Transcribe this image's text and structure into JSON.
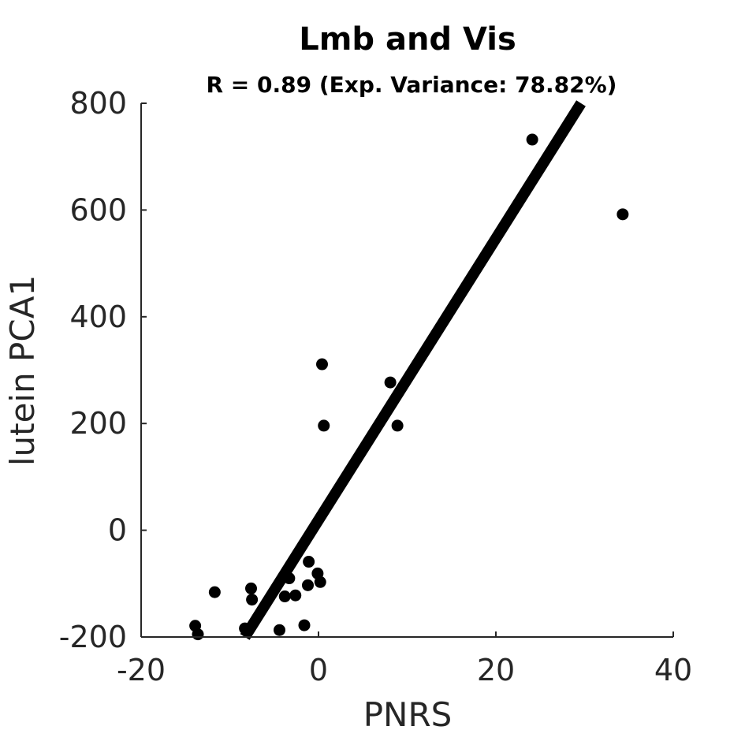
{
  "chart_data": {
    "type": "scatter",
    "title": "Lmb and Vis",
    "subtitle": "R = 0.89 (Exp. Variance: 78.82%)",
    "xlabel": "PNRS",
    "ylabel": "lutein PCA1",
    "xlim": [
      -20,
      40
    ],
    "ylim": [
      -200,
      800
    ],
    "xticks": [
      -20,
      0,
      20,
      40
    ],
    "yticks": [
      -200,
      0,
      200,
      400,
      600,
      800
    ],
    "grid": false,
    "point_color": "#000000",
    "line_color": "#000000",
    "points": [
      {
        "x": 24.1,
        "y": 732
      },
      {
        "x": 34.3,
        "y": 592
      },
      {
        "x": 0.4,
        "y": 311
      },
      {
        "x": 8.1,
        "y": 277
      },
      {
        "x": 0.6,
        "y": 196
      },
      {
        "x": 8.9,
        "y": 196
      },
      {
        "x": -1.1,
        "y": -59
      },
      {
        "x": -0.1,
        "y": -81
      },
      {
        "x": 0.2,
        "y": -97
      },
      {
        "x": -3.3,
        "y": -90
      },
      {
        "x": -1.2,
        "y": -103
      },
      {
        "x": -11.7,
        "y": -116
      },
      {
        "x": -7.6,
        "y": -109
      },
      {
        "x": -7.5,
        "y": -130
      },
      {
        "x": -3.8,
        "y": -124
      },
      {
        "x": -2.6,
        "y": -122
      },
      {
        "x": -13.9,
        "y": -179
      },
      {
        "x": -13.6,
        "y": -195
      },
      {
        "x": -8.3,
        "y": -184
      },
      {
        "x": -4.4,
        "y": -187
      },
      {
        "x": -1.6,
        "y": -178
      }
    ],
    "fit_line": {
      "x": [
        -8.3,
        29.6
      ],
      "y": [
        -200,
        800
      ]
    }
  }
}
